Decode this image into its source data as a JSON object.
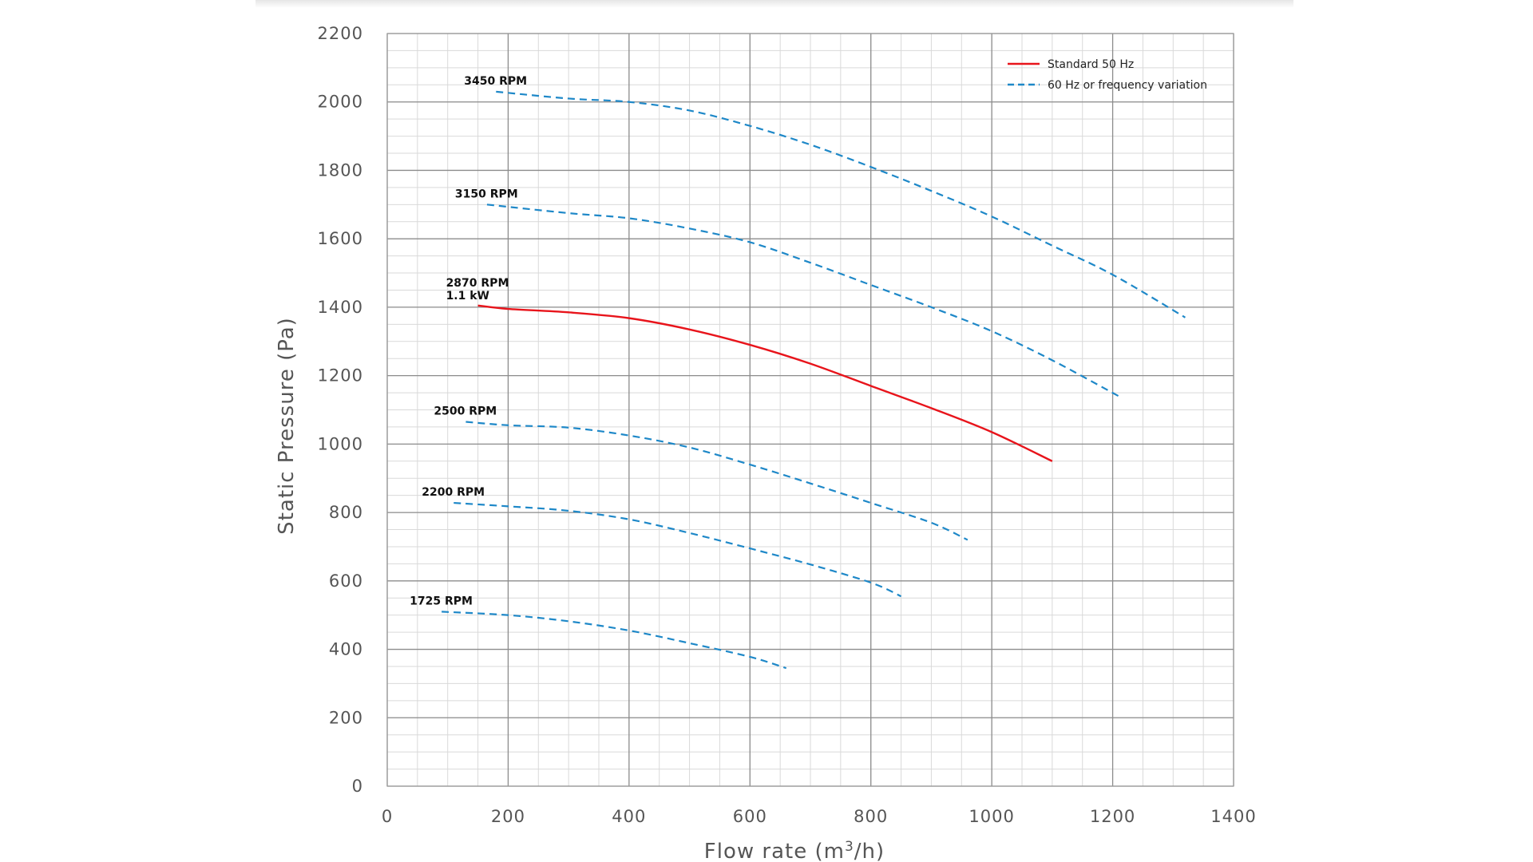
{
  "chart_data": {
    "type": "line",
    "title": "",
    "xlabel_text": "Flow rate (m",
    "xlabel_sup": "3",
    "xlabel_tail": "/h)",
    "ylabel": "Static Pressure (Pa)",
    "xlim": [
      0,
      1400
    ],
    "ylim": [
      0,
      2200
    ],
    "x_ticks": [
      0,
      200,
      400,
      600,
      800,
      1000,
      1200,
      1400
    ],
    "y_ticks": [
      0,
      200,
      400,
      600,
      800,
      1000,
      1200,
      1400,
      1600,
      1800,
      2000,
      2200
    ],
    "x_minor_step": 50,
    "y_minor_step": 50,
    "grid": true,
    "legend": {
      "position": "top-right",
      "items": [
        {
          "label": "Standard 50 Hz",
          "color": "#e8141b",
          "style": "solid"
        },
        {
          "label": "60 Hz or frequency variation",
          "color": "#1e88c8",
          "style": "dashed"
        }
      ]
    },
    "series": [
      {
        "label": "3450 RPM",
        "style": "dashed",
        "color": "#1e88c8",
        "points": [
          [
            180,
            2030
          ],
          [
            300,
            2010
          ],
          [
            400,
            2000
          ],
          [
            500,
            1975
          ],
          [
            600,
            1930
          ],
          [
            700,
            1875
          ],
          [
            800,
            1810
          ],
          [
            900,
            1740
          ],
          [
            1000,
            1665
          ],
          [
            1100,
            1580
          ],
          [
            1200,
            1495
          ],
          [
            1320,
            1370
          ]
        ]
      },
      {
        "label": "3150 RPM",
        "style": "dashed",
        "color": "#1e88c8",
        "points": [
          [
            165,
            1700
          ],
          [
            300,
            1675
          ],
          [
            400,
            1660
          ],
          [
            500,
            1630
          ],
          [
            600,
            1590
          ],
          [
            700,
            1530
          ],
          [
            800,
            1465
          ],
          [
            900,
            1400
          ],
          [
            1000,
            1330
          ],
          [
            1100,
            1245
          ],
          [
            1210,
            1140
          ]
        ]
      },
      {
        "label": "2870 RPM",
        "label2": "1.1 kW",
        "style": "solid",
        "color": "#e8141b",
        "points": [
          [
            150,
            1405
          ],
          [
            200,
            1395
          ],
          [
            300,
            1385
          ],
          [
            400,
            1368
          ],
          [
            500,
            1335
          ],
          [
            600,
            1290
          ],
          [
            700,
            1235
          ],
          [
            800,
            1170
          ],
          [
            900,
            1105
          ],
          [
            1000,
            1035
          ],
          [
            1100,
            950
          ]
        ]
      },
      {
        "label": "2500 RPM",
        "style": "dashed",
        "color": "#1e88c8",
        "points": [
          [
            130,
            1065
          ],
          [
            200,
            1055
          ],
          [
            300,
            1048
          ],
          [
            400,
            1025
          ],
          [
            500,
            990
          ],
          [
            600,
            940
          ],
          [
            700,
            885
          ],
          [
            800,
            828
          ],
          [
            900,
            770
          ],
          [
            960,
            720
          ]
        ]
      },
      {
        "label": "2200 RPM",
        "style": "dashed",
        "color": "#1e88c8",
        "points": [
          [
            110,
            828
          ],
          [
            200,
            818
          ],
          [
            300,
            805
          ],
          [
            400,
            780
          ],
          [
            500,
            740
          ],
          [
            600,
            695
          ],
          [
            700,
            648
          ],
          [
            800,
            595
          ],
          [
            850,
            555
          ]
        ]
      },
      {
        "label": "1725 RPM",
        "style": "dashed",
        "color": "#1e88c8",
        "points": [
          [
            90,
            510
          ],
          [
            200,
            500
          ],
          [
            300,
            482
          ],
          [
            400,
            455
          ],
          [
            500,
            418
          ],
          [
            600,
            378
          ],
          [
            660,
            345
          ]
        ]
      }
    ]
  }
}
